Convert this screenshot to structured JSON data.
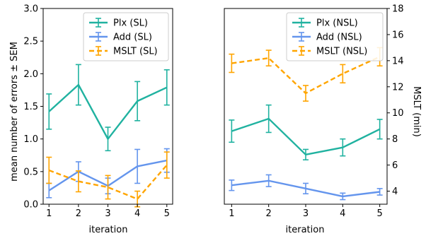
{
  "chart_data": [
    {
      "type": "line",
      "x": [
        1,
        2,
        3,
        4,
        5
      ],
      "xlabel": "iteration",
      "ylabel": "mean number of errors ± SEM",
      "ylim": [
        0.0,
        3.0
      ],
      "yticks": [
        "0.0",
        "0.5",
        "1.0",
        "1.5",
        "2.0",
        "2.5",
        "3.0"
      ],
      "xticks": [
        "1",
        "2",
        "3",
        "4",
        "5"
      ],
      "legend_position": "top-right",
      "series": [
        {
          "name": "Plx (SL)",
          "axis": "left",
          "color": "#20b2a0",
          "dashed": false,
          "values": [
            1.42,
            1.83,
            1.0,
            1.58,
            1.79
          ],
          "errors": [
            0.27,
            0.31,
            0.18,
            0.3,
            0.27
          ]
        },
        {
          "name": "Add (SL)",
          "axis": "left",
          "color": "#6495ed",
          "dashed": false,
          "values": [
            0.21,
            0.5,
            0.28,
            0.58,
            0.67
          ],
          "errors": [
            0.11,
            0.15,
            0.12,
            0.26,
            0.18
          ]
        },
        {
          "name": "MSLT (SL)",
          "axis": "right",
          "color": "#ffa500",
          "dashed": true,
          "values": [
            5.6,
            4.75,
            4.3,
            3.4,
            6.0
          ],
          "errors": [
            1.0,
            0.8,
            0.9,
            0.6,
            1.0
          ]
        }
      ]
    },
    {
      "type": "line",
      "x": [
        1,
        2,
        3,
        4,
        5
      ],
      "xlabel": "iteration",
      "ylabel": "MSLT (min)",
      "ylim": [
        3.0,
        18.0
      ],
      "yticks": [
        "4",
        "6",
        "8",
        "10",
        "12",
        "14",
        "16",
        "18"
      ],
      "xticks": [
        "1",
        "2",
        "3",
        "4",
        "5"
      ],
      "legend_position": "top-right",
      "series": [
        {
          "name": "Plx (NSL)",
          "axis": "left",
          "color": "#20b2a0",
          "dashed": false,
          "values": [
            1.12,
            1.31,
            0.76,
            0.87,
            1.15
          ],
          "errors": [
            0.17,
            0.21,
            0.08,
            0.13,
            0.15
          ]
        },
        {
          "name": "Add (NSL)",
          "axis": "left",
          "color": "#6495ed",
          "dashed": false,
          "values": [
            0.29,
            0.36,
            0.24,
            0.12,
            0.19
          ],
          "errors": [
            0.08,
            0.09,
            0.08,
            0.05,
            0.05
          ]
        },
        {
          "name": "MSLT (NSL)",
          "axis": "right",
          "color": "#ffa500",
          "dashed": true,
          "values": [
            13.8,
            14.2,
            11.5,
            13.0,
            14.3
          ],
          "errors": [
            0.7,
            0.6,
            0.6,
            0.7,
            0.7
          ]
        }
      ]
    }
  ]
}
